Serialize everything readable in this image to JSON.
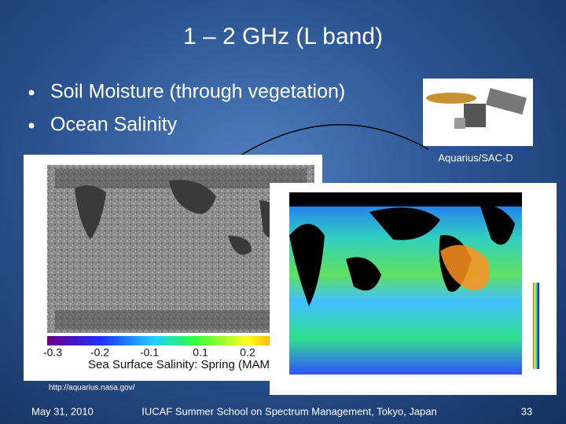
{
  "slide": {
    "title": "1 – 2 GHz (L band)",
    "bullets": [
      "Soil Moisture (through vegetation)",
      "Ocean Salinity"
    ],
    "satellite_caption": "Aquarius/SAC-D",
    "left_map": {
      "colorbar_labels": [
        "-0.3",
        "-0.2",
        "-0.1",
        "0.1",
        "0.2"
      ],
      "caption": "Sea Surface Salinity: Spring (MAM)"
    },
    "source_url": "http://aquarius.nasa.gov/",
    "footer": {
      "date": "May 31, 2010",
      "event": "IUCAF Summer School on Spectrum Management, Tokyo, Japan",
      "page": "33"
    }
  }
}
